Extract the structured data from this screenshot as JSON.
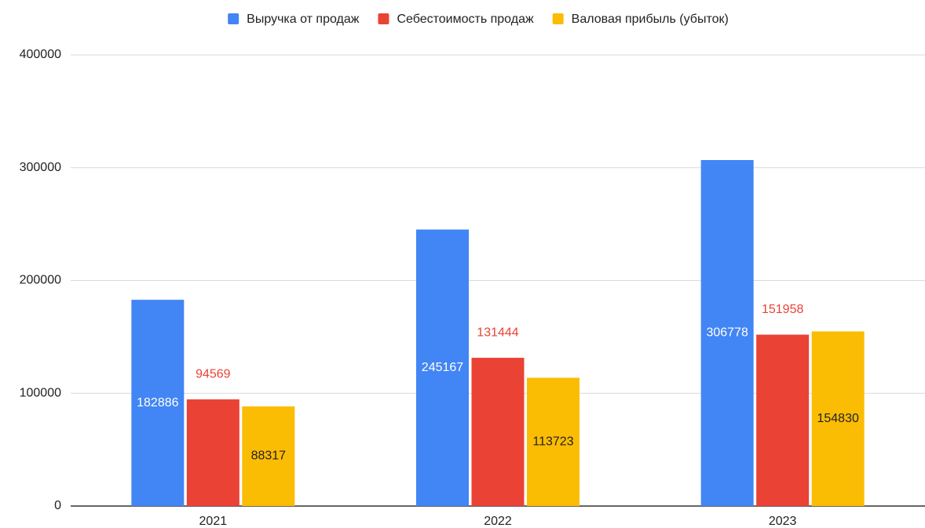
{
  "chart_data": {
    "type": "bar",
    "categories": [
      "2021",
      "2022",
      "2023"
    ],
    "series": [
      {
        "name": "Выручка от продаж",
        "color": "#4285f4",
        "label_color": "#ffffff",
        "values": [
          182886,
          245167,
          306778
        ]
      },
      {
        "name": "Себестоимость продаж",
        "color": "#ea4335",
        "label_color": "#ea4335",
        "values": [
          94569,
          131444,
          151958
        ]
      },
      {
        "name": "Валовая прибыль (убыток)",
        "color": "#fbbc04",
        "label_color": "#222222",
        "values": [
          88317,
          113723,
          154830
        ]
      }
    ],
    "ylim": [
      0,
      400000
    ],
    "yticks": [
      0,
      100000,
      200000,
      300000,
      400000
    ],
    "grid": true,
    "legend": "top"
  }
}
